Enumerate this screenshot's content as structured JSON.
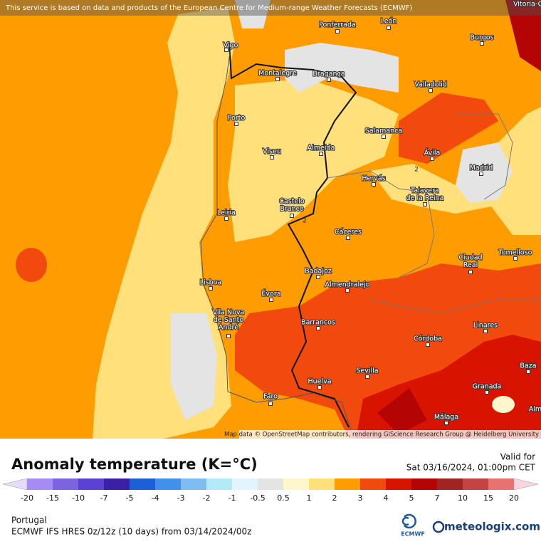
{
  "header_notice": "This service is based on data and products of the European Centre for Medium-range Weather Forecasts (ECMWF)",
  "attribution": "Map data © OpenStreetMap contributors, rendering GIScience Research Group @ Heidelberg University",
  "cities": [
    [
      "Vitoria-G"
    ],
    [
      "Ponferrada"
    ],
    [
      "León"
    ],
    [
      "Vigo"
    ],
    [
      "Burgos"
    ],
    [
      "Montalegre"
    ],
    [
      "Bragança"
    ],
    [
      "Valladolid"
    ],
    [
      "Porto"
    ],
    [
      "Salamanca"
    ],
    [
      "Viseu"
    ],
    [
      "Almeida"
    ],
    [
      "Ávila"
    ],
    [
      "Madrid"
    ],
    [
      "Hervás"
    ],
    [
      "Talavera",
      "de la Reina"
    ],
    [
      "Castelo",
      "Branco"
    ],
    [
      "Leiria"
    ],
    [
      "Cáceres"
    ],
    [
      "Ciudad",
      "Real"
    ],
    [
      "Tomelloso"
    ],
    [
      "Lisboa"
    ],
    [
      "Badajoz"
    ],
    [
      "Almendralejo"
    ],
    [
      "Évora"
    ],
    [
      "Vila Nova",
      "de Santo",
      "André"
    ],
    [
      "Barrancos"
    ],
    [
      "Linares"
    ],
    [
      "Córdoba"
    ],
    [
      "Sevilla"
    ],
    [
      "Baza"
    ],
    [
      "Granada"
    ],
    [
      "Huelva"
    ],
    [
      "Faro"
    ],
    [
      "Málaga"
    ],
    [
      "Alm"
    ]
  ],
  "contour_labels": [
    "2",
    "2"
  ],
  "title": "Anomaly temperature (K=°C)",
  "valid_label": "Valid for",
  "valid_time": "Sat 03/16/2024, 01:00pm CET",
  "legend": {
    "ticks": [
      "-20",
      "-15",
      "-10",
      "-7",
      "-5",
      "-4",
      "-3",
      "-2",
      "-1",
      "-0.5",
      "0.5",
      "1",
      "2",
      "3",
      "4",
      "5",
      "7",
      "10",
      "15",
      "20"
    ],
    "colors": [
      "#e4dcf8",
      "#a58cf2",
      "#7d63e2",
      "#5b42d2",
      "#3b1fa4",
      "#1d5fd6",
      "#3f91ea",
      "#7fbcf2",
      "#b4eaf8",
      "#e2f5fc",
      "#e4e4e4",
      "#fff7cc",
      "#ffe07a",
      "#ff9c00",
      "#f24a0c",
      "#d81400",
      "#b40404",
      "#a02424",
      "#c44444",
      "#e87272",
      "#f8a4a4",
      "#fbd4e2"
    ]
  },
  "region": "Portugal",
  "model_info": "ECMWF IFS HRES 0z/12z (10 days) from 03/14/2024/00z",
  "logo_ecmwf": "ECMWF",
  "logo_site": "meteologix.com"
}
